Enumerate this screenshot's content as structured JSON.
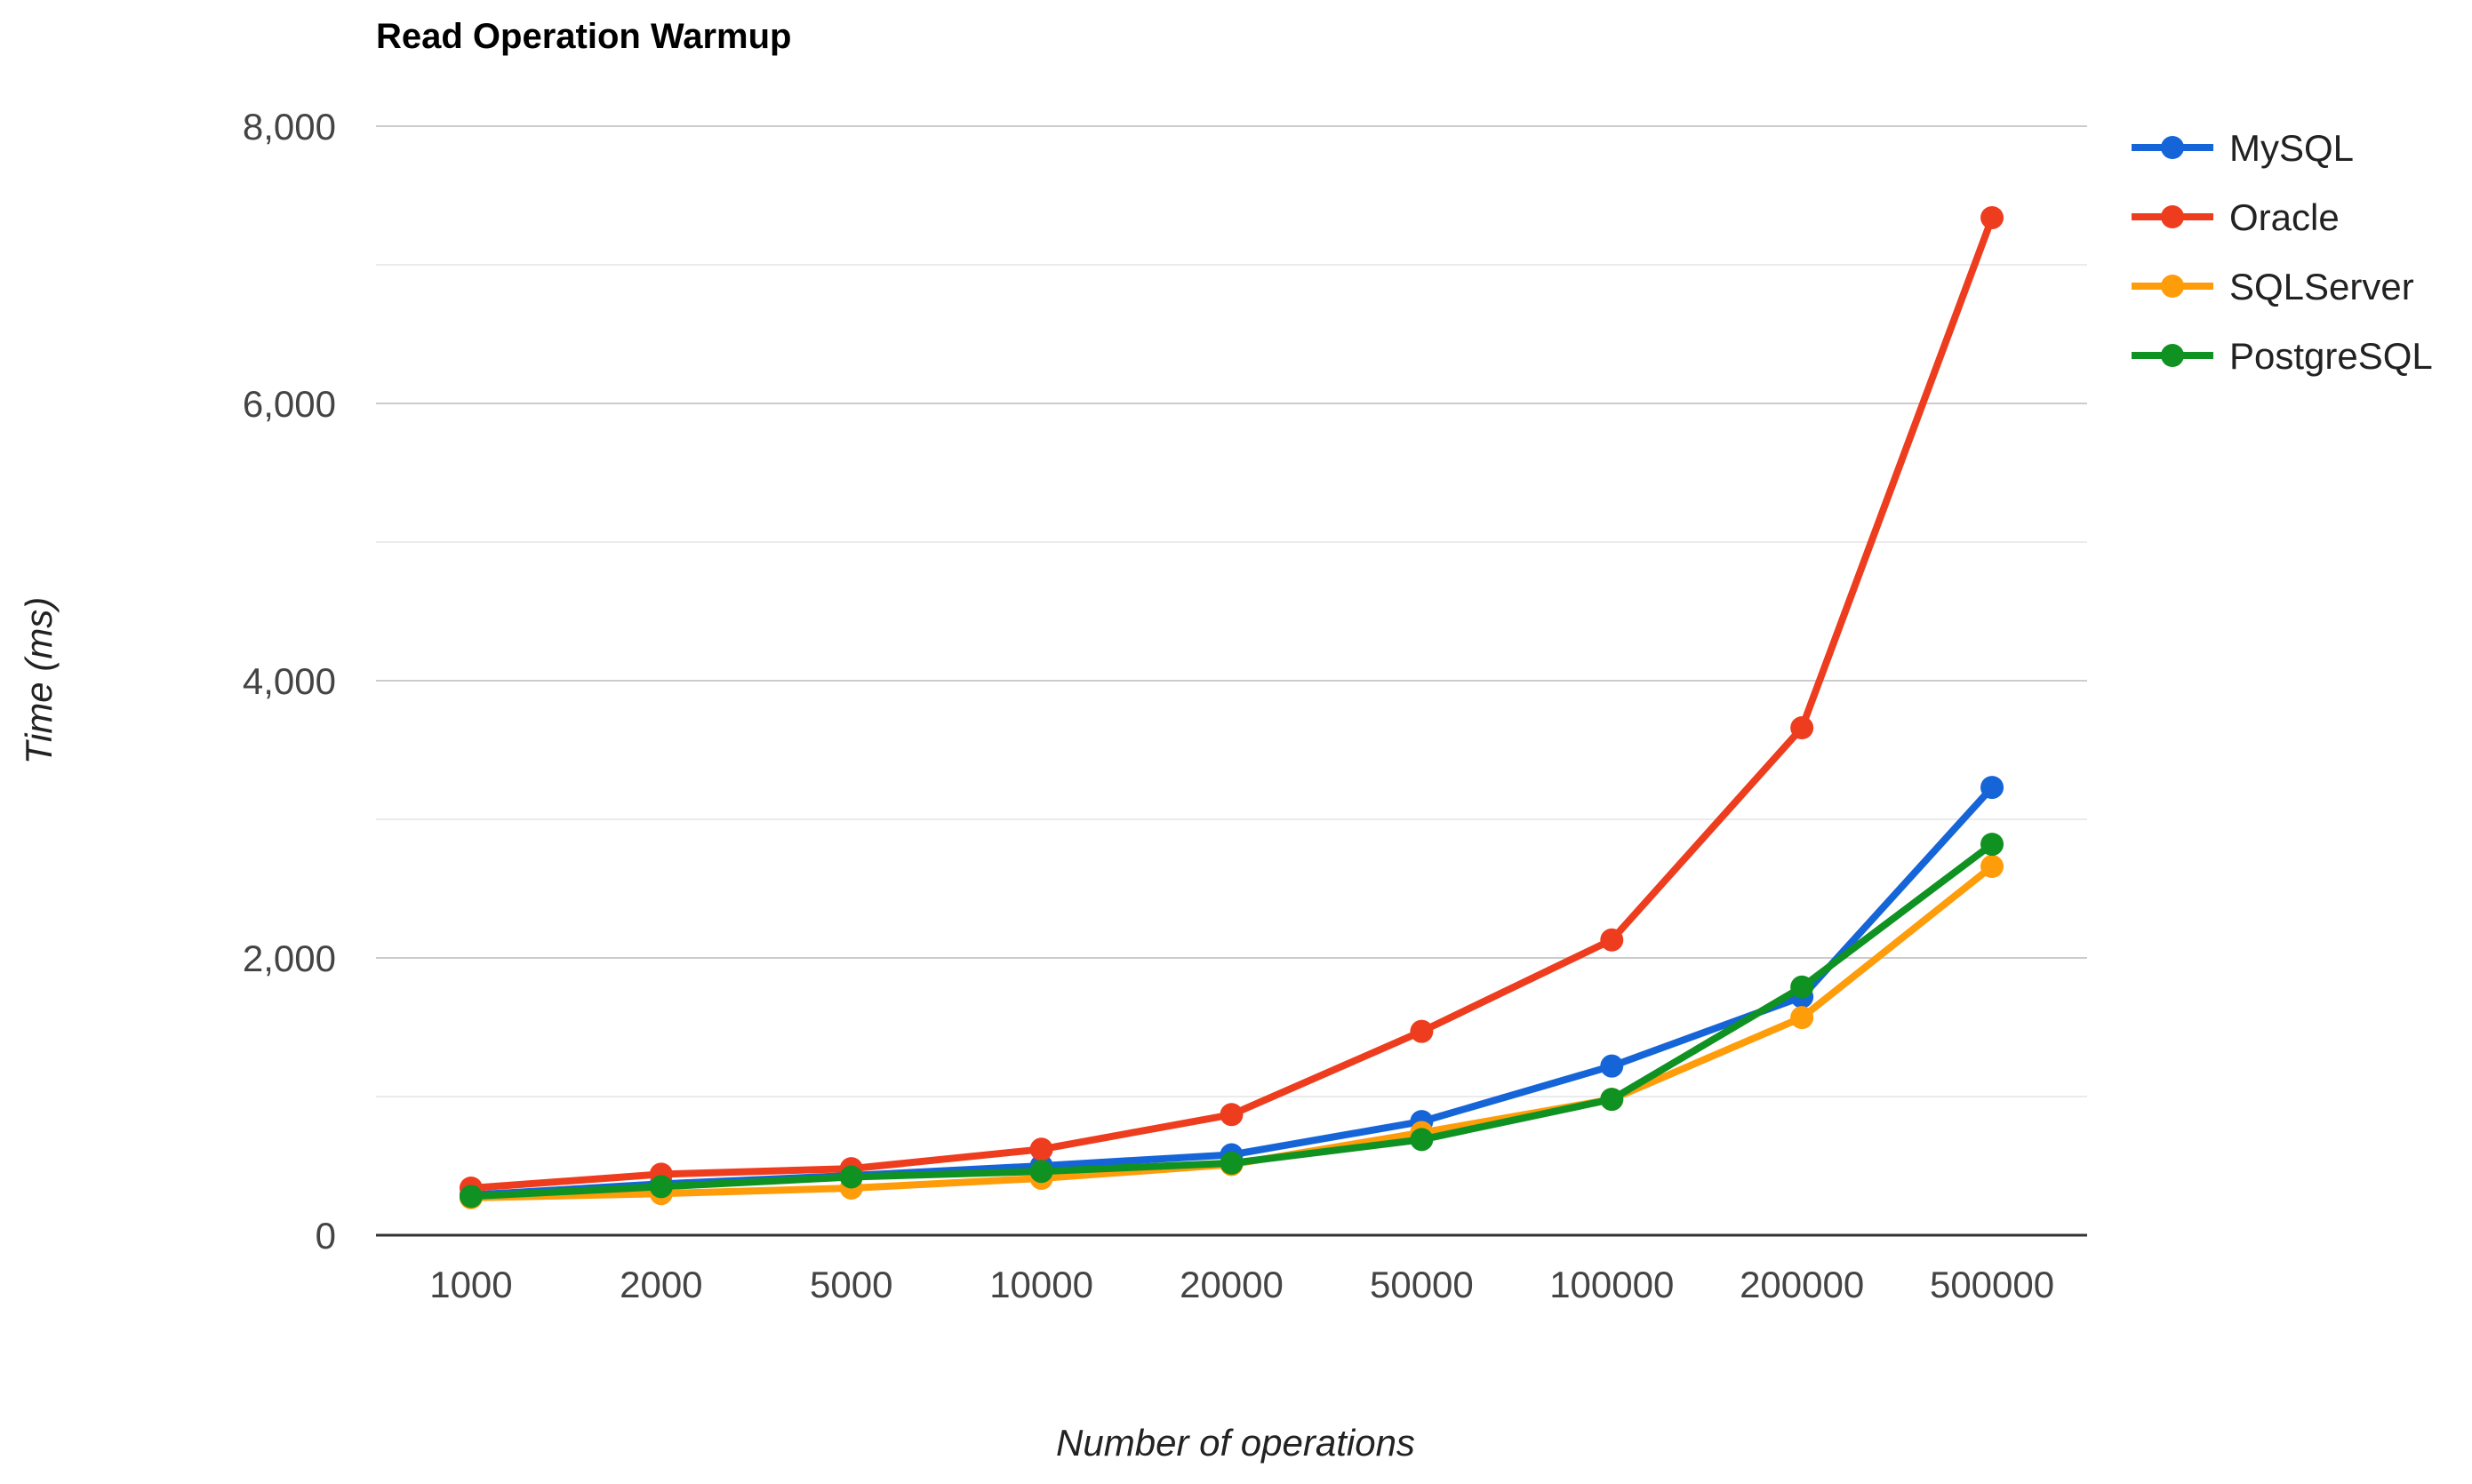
{
  "chart_data": {
    "type": "line",
    "title": "Read Operation Warmup",
    "xlabel": "Number of operations",
    "ylabel": "Time (ms)",
    "categories": [
      "1000",
      "2000",
      "5000",
      "10000",
      "20000",
      "50000",
      "100000",
      "200000",
      "500000"
    ],
    "ylim": [
      0,
      8000
    ],
    "yticks": [
      0,
      2000,
      4000,
      6000,
      8000
    ],
    "ytick_labels": [
      "0",
      "2,000",
      "4,000",
      "6,000",
      "8,000"
    ],
    "grid": true,
    "legend_position": "right",
    "series": [
      {
        "name": "MySQL",
        "color": "#1565d8",
        "values": [
          290,
          370,
          430,
          500,
          580,
          820,
          1220,
          1720,
          3230
        ]
      },
      {
        "name": "Oracle",
        "color": "#ee3d1e",
        "values": [
          340,
          440,
          480,
          620,
          870,
          1470,
          2130,
          3660,
          7340
        ]
      },
      {
        "name": "SQLServer",
        "color": "#ff9c0a",
        "values": [
          270,
          300,
          340,
          410,
          510,
          740,
          980,
          1570,
          2660
        ]
      },
      {
        "name": "PostgreSQL",
        "color": "#0f9222",
        "values": [
          280,
          350,
          420,
          460,
          520,
          690,
          980,
          1790,
          2820
        ]
      }
    ]
  }
}
